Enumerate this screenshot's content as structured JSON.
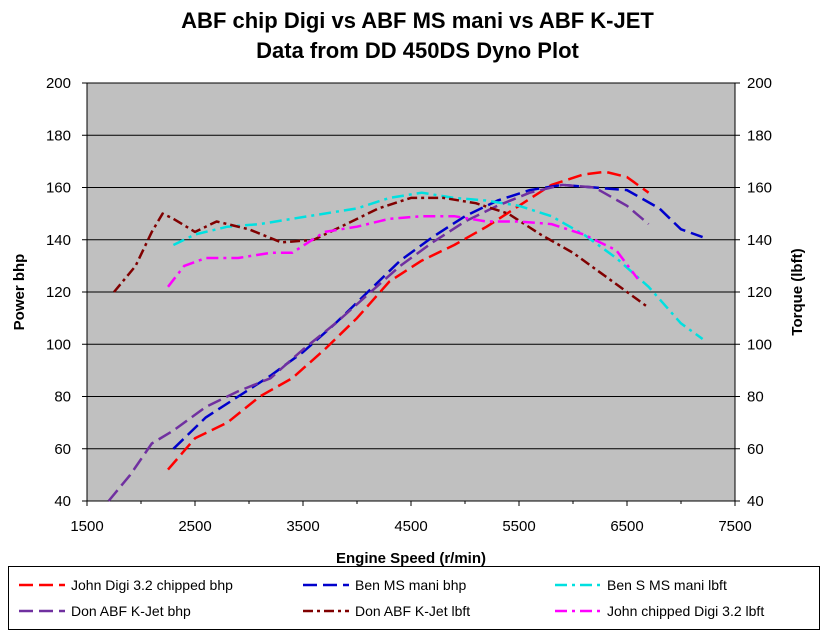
{
  "title": "ABF chip Digi vs ABF MS mani vs ABF K-JET",
  "subtitle": "Data from DD 450DS Dyno Plot",
  "chart_data": {
    "type": "line",
    "title": "ABF chip Digi vs ABF MS mani vs ABF K-JET",
    "subtitle": "Data from DD 450DS Dyno Plot",
    "xlabel": "Engine Speed (r/min)",
    "ylabel": "Power bhp",
    "y2label": "Torque (lbft)",
    "xlim": [
      1500,
      7500
    ],
    "ylim": [
      40,
      200
    ],
    "y2lim": [
      40,
      200
    ],
    "x_ticks": [
      "1500",
      "2500",
      "3500",
      "4500",
      "5500",
      "6500",
      "7500"
    ],
    "y_ticks": [
      "40",
      "60",
      "80",
      "100",
      "120",
      "140",
      "160",
      "180",
      "200"
    ],
    "y2_ticks": [
      "40",
      "60",
      "80",
      "100",
      "120",
      "140",
      "160",
      "180",
      "200"
    ],
    "grid": true,
    "plot_background": "#c0c0c0",
    "legend_position": "bottom",
    "series": [
      {
        "name": "John Digi 3.2 chipped bhp",
        "color": "#ff0000",
        "dash": "long",
        "axis": "left",
        "x": [
          2250,
          2500,
          2800,
          3100,
          3400,
          3700,
          4000,
          4300,
          4600,
          4900,
          5200,
          5500,
          5800,
          6100,
          6300,
          6500,
          6700
        ],
        "y": [
          52,
          64,
          70,
          80,
          87,
          98,
          110,
          124,
          132,
          138,
          145,
          153,
          161,
          165,
          166,
          164,
          158
        ]
      },
      {
        "name": "Ben MS mani bhp",
        "color": "#0000cc",
        "dash": "long",
        "axis": "left",
        "x": [
          2300,
          2600,
          2900,
          3200,
          3500,
          3800,
          4100,
          4400,
          4700,
          5000,
          5300,
          5600,
          5900,
          6200,
          6500,
          6800,
          7000,
          7200
        ],
        "y": [
          60,
          72,
          80,
          88,
          97,
          108,
          120,
          132,
          141,
          149,
          155,
          159,
          161,
          160,
          159,
          152,
          144,
          141
        ]
      },
      {
        "name": "Ben S MS mani lbft",
        "color": "#00e0e0",
        "dash": "dashdot",
        "axis": "right",
        "x": [
          2300,
          2500,
          2800,
          3100,
          3400,
          3700,
          4000,
          4300,
          4600,
          4900,
          5200,
          5500,
          5800,
          6100,
          6400,
          6700,
          7000,
          7200
        ],
        "y": [
          138,
          142,
          145,
          146,
          148,
          150,
          152,
          156,
          158,
          156,
          155,
          153,
          149,
          142,
          133,
          122,
          108,
          102
        ]
      },
      {
        "name": "Don ABF K-Jet bhp",
        "color": "#7030a0",
        "dash": "long",
        "axis": "left",
        "x": [
          1700,
          1900,
          2100,
          2300,
          2600,
          2900,
          3200,
          3500,
          3800,
          4100,
          4400,
          4700,
          5000,
          5300,
          5600,
          5900,
          6200,
          6500,
          6700
        ],
        "y": [
          40,
          50,
          62,
          67,
          76,
          82,
          87,
          98,
          108,
          119,
          130,
          139,
          147,
          153,
          158,
          161,
          160,
          153,
          146
        ]
      },
      {
        "name": "Don ABF K-Jet lbft",
        "color": "#800000",
        "dash": "dashshort",
        "axis": "right",
        "x": [
          1750,
          1950,
          2100,
          2200,
          2300,
          2500,
          2700,
          3000,
          3300,
          3600,
          3900,
          4200,
          4500,
          4800,
          5100,
          5400,
          5700,
          6000,
          6300,
          6600,
          6700
        ],
        "y": [
          120,
          130,
          143,
          150,
          148,
          143,
          147,
          144,
          139,
          140,
          146,
          152,
          156,
          156,
          154,
          150,
          142,
          135,
          126,
          117,
          114
        ]
      },
      {
        "name": "John chipped Digi 3.2 lbft",
        "color": "#ff00ff",
        "dash": "dashdot",
        "axis": "right",
        "x": [
          2250,
          2400,
          2600,
          2900,
          3200,
          3400,
          3700,
          4000,
          4300,
          4600,
          4900,
          5200,
          5500,
          5800,
          6100,
          6400,
          6600
        ],
        "y": [
          122,
          130,
          133,
          133,
          135,
          135,
          143,
          145,
          148,
          149,
          149,
          147,
          147,
          146,
          142,
          136,
          125
        ]
      }
    ]
  }
}
